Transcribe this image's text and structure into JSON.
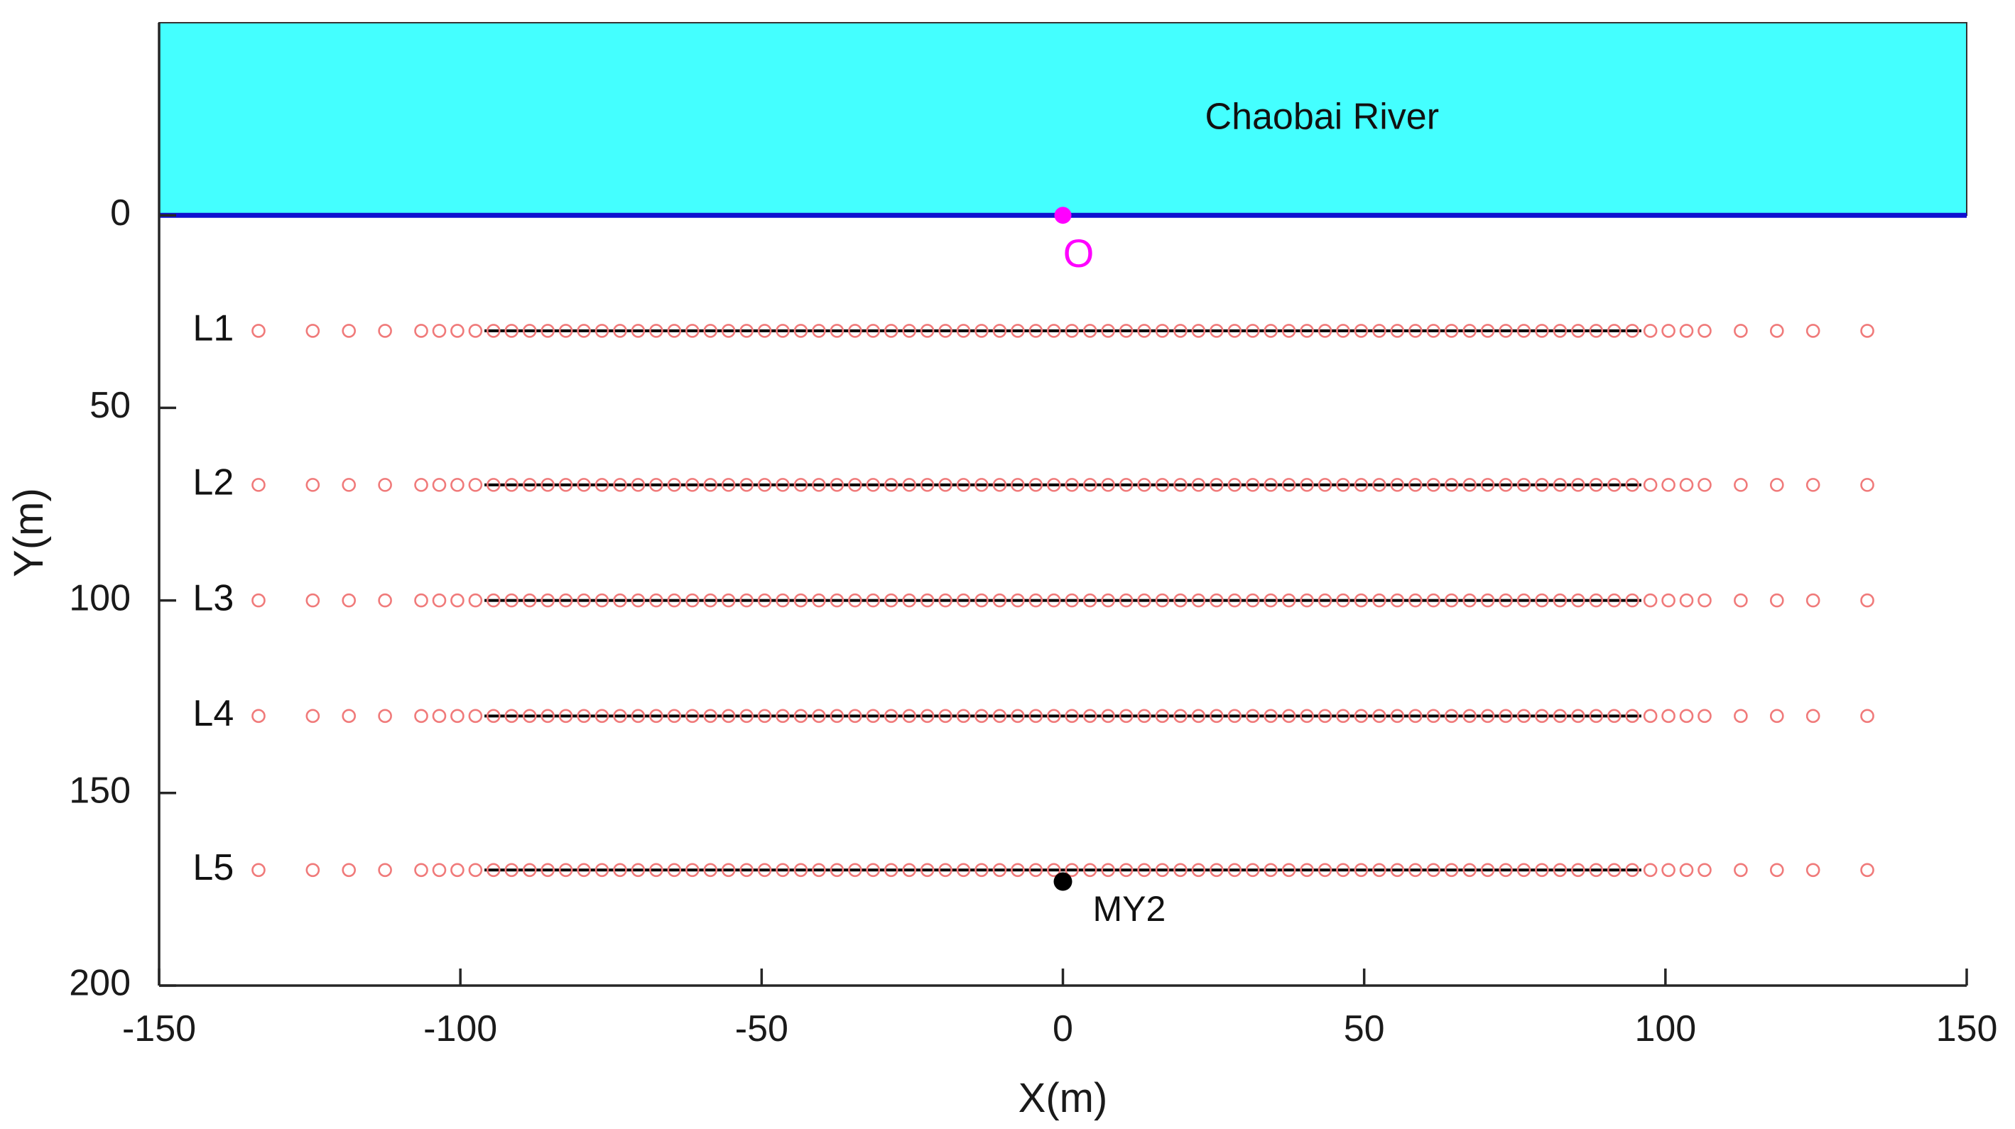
{
  "chart_data": {
    "type": "scatter",
    "title": "",
    "xlabel": "X(m)",
    "ylabel": "Y(m)",
    "xlim": [
      -150,
      150
    ],
    "ylim": [
      200,
      -50
    ],
    "y_reversed": true,
    "grid": false,
    "xticks": [
      -150,
      -100,
      -50,
      0,
      50,
      100,
      150
    ],
    "yticks": [
      0,
      50,
      100,
      150,
      200
    ],
    "river": {
      "label": "Chaobai River",
      "y_range": [
        -50,
        0
      ],
      "fill_color": "#44ffff",
      "bank_color": "#1010d0"
    },
    "origin": {
      "label": "O",
      "x": 0,
      "y": 0,
      "color": "#ff00ff"
    },
    "well": {
      "label": "MY2",
      "x": 0,
      "y": 173,
      "color": "#000000"
    },
    "line_span_x": [
      -96,
      96
    ],
    "line_color": "#000000",
    "point_color": "#f07a7a",
    "lines": [
      {
        "label": "L1",
        "y": 30
      },
      {
        "label": "L2",
        "y": 70
      },
      {
        "label": "L3",
        "y": 100
      },
      {
        "label": "L4",
        "y": 130
      },
      {
        "label": "L5",
        "y": 170
      }
    ],
    "point_x": [
      -133.5,
      -124.5,
      -118.5,
      -112.5,
      -106.5,
      -103.5,
      -100.5,
      -97.5,
      -94.5,
      -91.5,
      -88.5,
      -85.5,
      -82.5,
      -79.5,
      -76.5,
      -73.5,
      -70.5,
      -67.5,
      -64.5,
      -61.5,
      -58.5,
      -55.5,
      -52.5,
      -49.5,
      -46.5,
      -43.5,
      -40.5,
      -37.5,
      -34.5,
      -31.5,
      -28.5,
      -25.5,
      -22.5,
      -19.5,
      -16.5,
      -13.5,
      -10.5,
      -7.5,
      -4.5,
      -1.5,
      1.5,
      4.5,
      7.5,
      10.5,
      13.5,
      16.5,
      19.5,
      22.5,
      25.5,
      28.5,
      31.5,
      34.5,
      37.5,
      40.5,
      43.5,
      46.5,
      49.5,
      52.5,
      55.5,
      58.5,
      61.5,
      64.5,
      67.5,
      70.5,
      73.5,
      76.5,
      79.5,
      82.5,
      85.5,
      88.5,
      91.5,
      94.5,
      97.5,
      100.5,
      103.5,
      106.5,
      112.5,
      118.5,
      124.5,
      133.5
    ]
  }
}
